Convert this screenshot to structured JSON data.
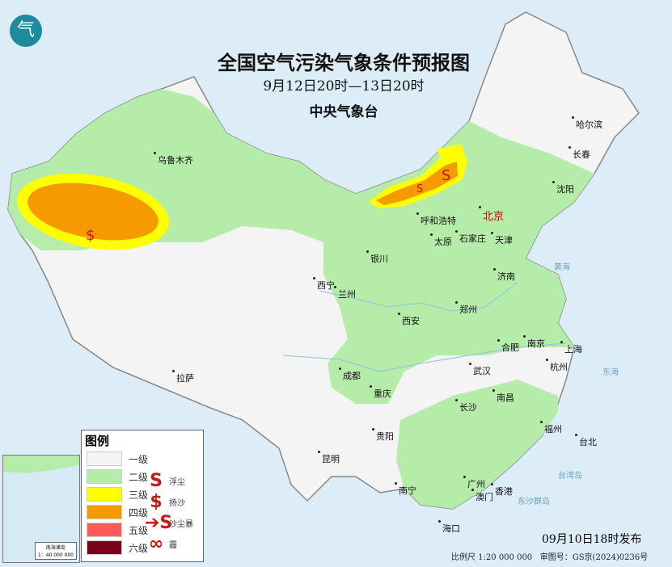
{
  "title": "全国空气污染气象条件预报图",
  "period": "9月12日20时—13日20时",
  "issuer": "中央气象台",
  "logo": "气",
  "capital": "北京",
  "cities": [
    "乌鲁木齐",
    "哈尔滨",
    "长春",
    "沈阳",
    "天津",
    "呼和浩特",
    "石家庄",
    "太原",
    "银川",
    "济南",
    "西宁",
    "兰州",
    "郑州",
    "西安",
    "合肥",
    "南京",
    "上海",
    "杭州",
    "武汉",
    "成都",
    "重庆",
    "长沙",
    "南昌",
    "拉萨",
    "贵阳",
    "福州",
    "台北",
    "昆明",
    "南宁",
    "广州",
    "澳门",
    "香港",
    "海口"
  ],
  "seas": [
    "黄海",
    "东海",
    "台湾岛",
    "东沙群岛"
  ],
  "legend": {
    "title": "图例",
    "levels": [
      {
        "label": "一级",
        "color": "#f4f4f4"
      },
      {
        "label": "二级",
        "color": "#b5ecaa"
      },
      {
        "label": "三级",
        "color": "#ffff00"
      },
      {
        "label": "四级",
        "color": "#f59a00"
      },
      {
        "label": "五级",
        "color": "#fa5a5a"
      },
      {
        "label": "六级",
        "color": "#7a0019"
      }
    ],
    "symbols": [
      {
        "glyph": "S",
        "label": "浮尘"
      },
      {
        "glyph": "$",
        "label": "扬沙"
      },
      {
        "glyph": "➔S",
        "label": "沙尘暴"
      },
      {
        "glyph": "∞",
        "label": "霾"
      }
    ]
  },
  "inset": {
    "title": "南海诸岛",
    "scale": "1：40 000 000"
  },
  "issued": "09月10日18时发布",
  "scale": "比例尺 1:20 000 000",
  "approval": "审图号：GS京(2024)0236号"
}
